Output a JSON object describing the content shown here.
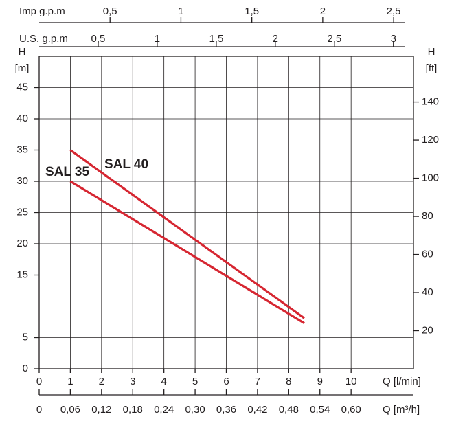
{
  "chart_data": {
    "type": "line",
    "x_label": "Q [l/min]",
    "y_label": "H",
    "y_unit": "[m]",
    "y2_label": "H",
    "y2_unit": "[ft]",
    "xlim": [
      0,
      12
    ],
    "xticks": [
      0,
      1,
      2,
      3,
      4,
      5,
      6,
      7,
      8,
      9,
      10
    ],
    "ylim": [
      0,
      50
    ],
    "yticks": [
      0,
      5,
      15,
      20,
      25,
      30,
      35,
      40,
      45
    ],
    "y2lim": [
      0,
      164
    ],
    "y2ticks": [
      20,
      40,
      60,
      80,
      100,
      120,
      140
    ],
    "grid": true,
    "extra_x_axes": [
      {
        "position": "bottom",
        "label": "Q [m³/h]",
        "lim": [
          0,
          0.72
        ],
        "ticks": [
          0,
          {
            "value": 0.06,
            "label": "0,06"
          },
          {
            "value": 0.12,
            "label": "0,12"
          },
          {
            "value": 0.18,
            "label": "0,18"
          },
          {
            "value": 0.24,
            "label": "0,24"
          },
          {
            "value": 0.3,
            "label": "0,30"
          },
          {
            "value": 0.36,
            "label": "0,36"
          },
          {
            "value": 0.42,
            "label": "0,42"
          },
          {
            "value": 0.48,
            "label": "0,48"
          },
          {
            "value": 0.54,
            "label": "0,54"
          },
          {
            "value": 0.6,
            "label": "0,60"
          }
        ]
      },
      {
        "position": "top",
        "label": "U.S. g.p.m",
        "lim": [
          0,
          3.17
        ],
        "ticks": [
          {
            "value": 0.5,
            "label": "0,5"
          },
          1,
          {
            "value": 1.5,
            "label": "1,5"
          },
          2,
          {
            "value": 2.5,
            "label": "2,5"
          },
          3
        ]
      },
      {
        "position": "top",
        "label": "Imp g.p.m",
        "lim": [
          0,
          2.64
        ],
        "ticks": [
          {
            "value": 0.5,
            "label": "0,5"
          },
          1,
          {
            "value": 1.5,
            "label": "1,5"
          },
          2,
          {
            "value": 2.5,
            "label": "2,5"
          }
        ]
      }
    ],
    "series": [
      {
        "name": "SAL 35",
        "color": "#d62631",
        "x": [
          1,
          8.5
        ],
        "values": [
          30,
          7.3
        ]
      },
      {
        "name": "SAL 40",
        "color": "#d62631",
        "x": [
          1,
          8.5
        ],
        "values": [
          35,
          8.1
        ]
      }
    ]
  }
}
